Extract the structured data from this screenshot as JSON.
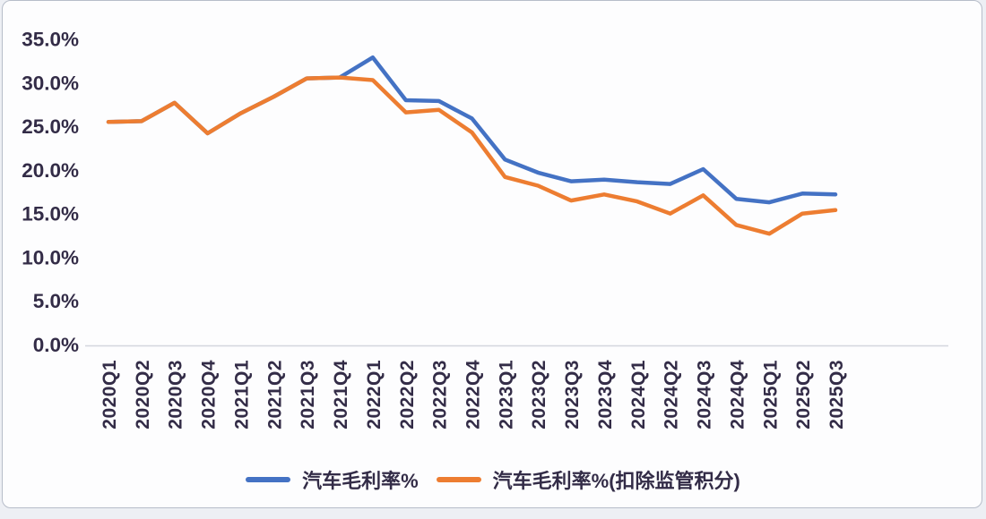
{
  "theme": {
    "page_background": "#edeff4",
    "card_background": "#fdfdfe",
    "card_border_color": "#b7bdc9",
    "text_color": "#332c47",
    "axis_line_color": "#d4d6dd",
    "series_blue": "#4472C4",
    "series_orange": "#ED7D31"
  },
  "chart_data": {
    "type": "line",
    "title": "",
    "xlabel": "",
    "ylabel": "",
    "ylim": [
      0,
      35
    ],
    "grid": false,
    "legend_position": "bottom",
    "categories": [
      "2020Q1",
      "2020Q2",
      "2020Q3",
      "2020Q4",
      "2021Q1",
      "2021Q2",
      "2021Q3",
      "2021Q4",
      "2022Q1",
      "2022Q2",
      "2022Q3",
      "2022Q4",
      "2023Q1",
      "2023Q2",
      "2023Q3",
      "2023Q4",
      "2024Q1",
      "2024Q2",
      "2024Q3",
      "2024Q4",
      "2025Q1",
      "2025Q2",
      "2025Q3"
    ],
    "y_ticks": [
      {
        "value": 0,
        "label": "0.0%"
      },
      {
        "value": 5,
        "label": "5.0%"
      },
      {
        "value": 10,
        "label": "10.0%"
      },
      {
        "value": 15,
        "label": "15.0%"
      },
      {
        "value": 20,
        "label": "20.0%"
      },
      {
        "value": 25,
        "label": "25.0%"
      },
      {
        "value": 30,
        "label": "30.0%"
      },
      {
        "value": 35,
        "label": "35.0%"
      }
    ],
    "series": [
      {
        "name": "汽车毛利率%",
        "color": "#4472C4",
        "values": [
          25.5,
          25.6,
          27.7,
          24.2,
          26.5,
          28.4,
          30.5,
          30.6,
          32.9,
          28.0,
          27.9,
          25.9,
          21.2,
          19.7,
          18.7,
          18.9,
          18.6,
          18.4,
          20.1,
          16.7,
          16.3,
          17.3,
          17.2
        ]
      },
      {
        "name": "汽车毛利率%(扣除监管积分)",
        "color": "#ED7D31",
        "values": [
          25.5,
          25.6,
          27.7,
          24.2,
          26.5,
          28.4,
          30.5,
          30.6,
          30.3,
          26.6,
          26.9,
          24.3,
          19.2,
          18.2,
          16.5,
          17.2,
          16.4,
          15.0,
          17.1,
          13.7,
          12.7,
          15.0,
          15.4
        ]
      }
    ]
  }
}
